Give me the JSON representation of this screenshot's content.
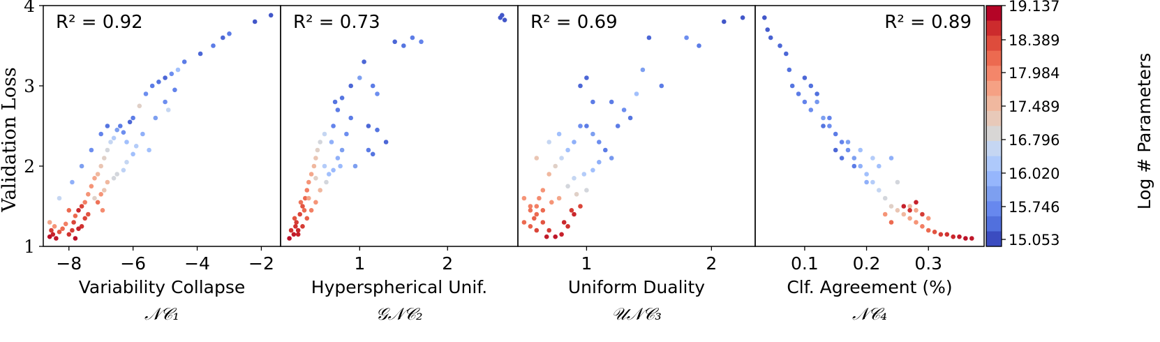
{
  "figure": {
    "ylabel": "Validation Loss",
    "colorbar": {
      "label": "Log # Parameters",
      "ticks": [
        "19.137",
        "18.389",
        "17.984",
        "17.489",
        "16.796",
        "16.020",
        "15.746",
        "15.053"
      ],
      "colors": [
        "#b40426",
        "#cc2b2d",
        "#de4c3c",
        "#ec6a50",
        "#f4866a",
        "#f5a184",
        "#f0b89f",
        "#e8c9b9",
        "#d8d6d5",
        "#c5d6f2",
        "#aec9fb",
        "#96b6fc",
        "#7d9ff0",
        "#6788ee",
        "#5170dd",
        "#3b4cc0"
      ]
    }
  },
  "chart_data": [
    {
      "type": "scatter",
      "annotation": "R² = 0.92",
      "xlabel": "Variability Collapse",
      "xsublabel": "𝒩𝒞₁",
      "ylabel": "Validation Loss",
      "xlim": [
        -8.8,
        -1.4
      ],
      "ylim": [
        1.0,
        4.0
      ],
      "xticks": [
        -8,
        -6,
        -4,
        -2
      ],
      "yticks": [
        1,
        2,
        3,
        4
      ],
      "points": [
        [
          -8.6,
          1.12,
          0.02
        ],
        [
          -8.5,
          1.15,
          0.05
        ],
        [
          -8.55,
          1.2,
          0.1
        ],
        [
          -8.4,
          1.1,
          0.03
        ],
        [
          -8.3,
          1.18,
          0.15
        ],
        [
          -8.2,
          1.22,
          0.2
        ],
        [
          -8.1,
          1.28,
          0.25
        ],
        [
          -8.6,
          1.3,
          0.35
        ],
        [
          -8.45,
          1.25,
          0.3
        ],
        [
          -8.0,
          1.15,
          0.08
        ],
        [
          -7.9,
          1.2,
          0.1
        ],
        [
          -7.85,
          1.3,
          0.12
        ],
        [
          -7.8,
          1.38,
          0.2
        ],
        [
          -7.7,
          1.45,
          0.06
        ],
        [
          -7.6,
          1.5,
          0.12
        ],
        [
          -7.5,
          1.55,
          0.25
        ],
        [
          -7.4,
          1.65,
          0.3
        ],
        [
          -7.3,
          1.75,
          0.3
        ],
        [
          -7.2,
          1.85,
          0.35
        ],
        [
          -7.1,
          1.9,
          0.4
        ],
        [
          -7.0,
          2.0,
          0.45
        ],
        [
          -6.9,
          2.1,
          0.5
        ],
        [
          -6.8,
          2.2,
          0.55
        ],
        [
          -6.7,
          2.3,
          0.6
        ],
        [
          -6.6,
          2.35,
          0.65
        ],
        [
          -6.5,
          2.45,
          0.8
        ],
        [
          -6.4,
          2.5,
          0.9
        ],
        [
          -6.3,
          2.42,
          0.85
        ],
        [
          -6.2,
          2.3,
          0.7
        ],
        [
          -6.1,
          2.55,
          0.95
        ],
        [
          -6.0,
          2.6,
          0.9
        ],
        [
          -5.8,
          2.75,
          0.5
        ],
        [
          -5.6,
          2.9,
          0.85
        ],
        [
          -5.4,
          3.0,
          0.9
        ],
        [
          -5.2,
          3.05,
          0.92
        ],
        [
          -5.0,
          3.1,
          0.95
        ],
        [
          -4.8,
          3.15,
          0.85
        ],
        [
          -4.6,
          3.2,
          0.7
        ],
        [
          -4.4,
          3.3,
          0.9
        ],
        [
          -3.9,
          3.4,
          0.95
        ],
        [
          -3.5,
          3.5,
          0.9
        ],
        [
          -3.2,
          3.6,
          0.95
        ],
        [
          -3.0,
          3.65,
          0.9
        ],
        [
          -2.2,
          3.8,
          0.98
        ],
        [
          -1.7,
          3.88,
          0.98
        ],
        [
          -7.0,
          1.65,
          0.3
        ],
        [
          -6.8,
          1.8,
          0.4
        ],
        [
          -6.5,
          1.9,
          0.55
        ],
        [
          -6.2,
          2.05,
          0.6
        ],
        [
          -5.9,
          2.25,
          0.65
        ],
        [
          -7.6,
          1.25,
          0.08
        ],
        [
          -7.5,
          1.35,
          0.12
        ],
        [
          -8.0,
          1.45,
          0.2
        ],
        [
          -8.3,
          1.6,
          0.6
        ],
        [
          -7.9,
          1.8,
          0.75
        ],
        [
          -7.6,
          2.0,
          0.8
        ],
        [
          -7.3,
          2.2,
          0.85
        ],
        [
          -7.0,
          2.4,
          0.88
        ],
        [
          -6.8,
          2.5,
          0.92
        ],
        [
          -7.2,
          1.6,
          0.5
        ],
        [
          -6.9,
          1.7,
          0.45
        ],
        [
          -6.6,
          1.85,
          0.55
        ],
        [
          -6.3,
          1.95,
          0.62
        ],
        [
          -6.0,
          2.15,
          0.7
        ],
        [
          -5.7,
          2.4,
          0.75
        ],
        [
          -5.3,
          2.6,
          0.8
        ],
        [
          -5.0,
          2.8,
          0.85
        ],
        [
          -4.7,
          2.95,
          0.88
        ],
        [
          -4.9,
          2.7,
          0.6
        ],
        [
          -5.5,
          2.2,
          0.7
        ],
        [
          -7.8,
          1.1,
          0.02
        ],
        [
          -7.7,
          1.22,
          0.05
        ],
        [
          -7.4,
          1.4,
          0.15
        ],
        [
          -7.1,
          1.55,
          0.22
        ],
        [
          -6.95,
          1.45,
          0.28
        ]
      ]
    },
    {
      "type": "scatter",
      "annotation": "R² = 0.73",
      "xlabel": "Hyperspherical Unif.",
      "xsublabel": "𝒢𝒩𝒞₂",
      "ylabel": "Validation Loss",
      "xlim": [
        0.1,
        2.8
      ],
      "ylim": [
        1.0,
        4.0
      ],
      "xticks": [
        1,
        2
      ],
      "yticks": [
        1,
        2,
        3,
        4
      ],
      "points": [
        [
          0.2,
          1.1,
          0.02
        ],
        [
          0.25,
          1.15,
          0.04
        ],
        [
          0.3,
          1.2,
          0.06
        ],
        [
          0.28,
          1.3,
          0.1
        ],
        [
          0.32,
          1.4,
          0.12
        ],
        [
          0.35,
          1.5,
          0.15
        ],
        [
          0.38,
          1.6,
          0.2
        ],
        [
          0.4,
          1.7,
          0.25
        ],
        [
          0.42,
          1.8,
          0.3
        ],
        [
          0.45,
          1.9,
          0.35
        ],
        [
          0.48,
          2.0,
          0.4
        ],
        [
          0.5,
          2.1,
          0.45
        ],
        [
          0.52,
          2.2,
          0.5
        ],
        [
          0.55,
          2.3,
          0.55
        ],
        [
          0.5,
          1.55,
          0.3
        ],
        [
          0.45,
          1.45,
          0.25
        ],
        [
          0.4,
          1.35,
          0.18
        ],
        [
          0.35,
          1.25,
          0.1
        ],
        [
          0.6,
          2.0,
          0.65
        ],
        [
          0.65,
          1.9,
          0.7
        ],
        [
          0.7,
          1.95,
          0.72
        ],
        [
          0.75,
          2.1,
          0.75
        ],
        [
          0.8,
          2.2,
          0.8
        ],
        [
          0.85,
          2.4,
          0.85
        ],
        [
          0.9,
          2.6,
          0.9
        ],
        [
          0.7,
          2.5,
          0.88
        ],
        [
          0.75,
          2.7,
          0.9
        ],
        [
          0.8,
          2.85,
          0.92
        ],
        [
          0.9,
          3.0,
          0.95
        ],
        [
          1.0,
          3.1,
          0.8
        ],
        [
          1.05,
          3.3,
          0.95
        ],
        [
          1.15,
          3.0,
          0.9
        ],
        [
          1.2,
          2.9,
          0.85
        ],
        [
          1.1,
          2.5,
          0.95
        ],
        [
          1.2,
          2.45,
          0.92
        ],
        [
          1.3,
          2.3,
          0.95
        ],
        [
          1.4,
          3.55,
          0.95
        ],
        [
          1.5,
          3.5,
          0.92
        ],
        [
          1.6,
          3.6,
          0.9
        ],
        [
          1.7,
          3.55,
          0.88
        ],
        [
          2.6,
          3.85,
          0.98
        ],
        [
          2.65,
          3.82,
          0.98
        ],
        [
          2.62,
          3.88,
          0.98
        ],
        [
          0.6,
          2.4,
          0.6
        ],
        [
          0.55,
          1.7,
          0.4
        ],
        [
          0.62,
          1.8,
          0.55
        ],
        [
          0.3,
          1.15,
          0.05
        ],
        [
          0.22,
          1.2,
          0.08
        ],
        [
          0.26,
          1.35,
          0.15
        ],
        [
          0.33,
          1.55,
          0.22
        ],
        [
          0.68,
          2.3,
          0.75
        ],
        [
          0.72,
          2.8,
          0.92
        ],
        [
          1.1,
          2.2,
          0.9
        ],
        [
          1.15,
          2.15,
          0.92
        ],
        [
          0.95,
          2.0,
          0.8
        ],
        [
          0.78,
          2.0,
          0.72
        ],
        [
          0.5,
          1.85,
          0.5
        ],
        [
          0.42,
          1.6,
          0.35
        ],
        [
          0.37,
          1.45,
          0.2
        ],
        [
          0.27,
          1.25,
          0.08
        ]
      ]
    },
    {
      "type": "scatter",
      "annotation": "R² = 0.69",
      "xlabel": "Uniform Duality",
      "xsublabel": "𝒰𝒩𝒞₃",
      "ylabel": "Validation Loss",
      "xlim": [
        0.45,
        2.35
      ],
      "ylim": [
        1.0,
        4.0
      ],
      "xticks": [
        1,
        2
      ],
      "yticks": [
        1,
        2,
        3,
        4
      ],
      "points": [
        [
          0.5,
          1.6,
          0.3
        ],
        [
          0.55,
          1.5,
          0.25
        ],
        [
          0.6,
          1.4,
          0.2
        ],
        [
          0.65,
          1.3,
          0.15
        ],
        [
          0.7,
          1.2,
          0.1
        ],
        [
          0.75,
          1.12,
          0.03
        ],
        [
          0.8,
          1.15,
          0.05
        ],
        [
          0.85,
          1.25,
          0.08
        ],
        [
          0.9,
          1.4,
          0.06
        ],
        [
          0.95,
          1.5,
          0.12
        ],
        [
          0.5,
          1.3,
          0.2
        ],
        [
          0.55,
          1.25,
          0.18
        ],
        [
          0.6,
          1.5,
          0.25
        ],
        [
          0.65,
          1.7,
          0.3
        ],
        [
          0.7,
          1.9,
          0.4
        ],
        [
          0.75,
          2.0,
          0.5
        ],
        [
          0.8,
          2.1,
          0.6
        ],
        [
          0.85,
          2.2,
          0.7
        ],
        [
          0.9,
          2.3,
          0.75
        ],
        [
          0.95,
          2.5,
          0.85
        ],
        [
          1.0,
          2.5,
          0.9
        ],
        [
          1.05,
          2.4,
          0.8
        ],
        [
          1.1,
          2.3,
          0.85
        ],
        [
          1.15,
          2.2,
          0.9
        ],
        [
          0.95,
          3.0,
          0.95
        ],
        [
          1.0,
          3.1,
          0.95
        ],
        [
          1.05,
          2.8,
          0.9
        ],
        [
          1.2,
          2.8,
          0.9
        ],
        [
          1.3,
          2.7,
          0.85
        ],
        [
          1.4,
          2.9,
          0.7
        ],
        [
          1.45,
          3.2,
          0.8
        ],
        [
          1.5,
          3.6,
          0.95
        ],
        [
          1.6,
          3.0,
          0.9
        ],
        [
          1.8,
          3.6,
          0.85
        ],
        [
          1.9,
          3.5,
          0.9
        ],
        [
          2.25,
          3.85,
          0.98
        ],
        [
          2.1,
          3.8,
          0.98
        ],
        [
          0.55,
          1.45,
          0.22
        ],
        [
          0.65,
          1.45,
          0.2
        ],
        [
          0.72,
          1.55,
          0.3
        ],
        [
          0.78,
          1.6,
          0.35
        ],
        [
          0.85,
          1.75,
          0.55
        ],
        [
          0.9,
          1.85,
          0.6
        ],
        [
          0.98,
          1.9,
          0.65
        ],
        [
          1.05,
          1.95,
          0.7
        ],
        [
          0.6,
          1.2,
          0.12
        ],
        [
          0.68,
          1.12,
          0.04
        ],
        [
          0.82,
          1.3,
          0.06
        ],
        [
          0.88,
          1.45,
          0.1
        ],
        [
          1.1,
          2.05,
          0.75
        ],
        [
          0.7,
          2.3,
          0.6
        ],
        [
          0.6,
          2.1,
          0.45
        ],
        [
          0.78,
          2.4,
          0.7
        ],
        [
          1.2,
          2.1,
          0.82
        ],
        [
          1.25,
          2.5,
          0.9
        ],
        [
          1.35,
          2.6,
          0.92
        ],
        [
          0.92,
          1.65,
          0.5
        ],
        [
          1.0,
          1.7,
          0.55
        ],
        [
          0.62,
          1.6,
          0.28
        ],
        [
          0.58,
          1.35,
          0.18
        ]
      ]
    },
    {
      "type": "scatter",
      "annotation": "R² = 0.89",
      "xlabel": "Clf. Agreement (%)",
      "xsublabel": "𝒩𝒞₄",
      "ylabel": "Validation Loss",
      "xlim": [
        0.02,
        0.39
      ],
      "ylim": [
        1.0,
        4.0
      ],
      "xticks": [
        0.1,
        0.2,
        0.3
      ],
      "yticks": [
        1,
        2,
        3,
        4
      ],
      "points": [
        [
          0.035,
          3.85,
          0.98
        ],
        [
          0.04,
          3.7,
          0.97
        ],
        [
          0.045,
          3.6,
          0.96
        ],
        [
          0.06,
          3.5,
          0.95
        ],
        [
          0.07,
          3.4,
          0.95
        ],
        [
          0.075,
          3.2,
          0.93
        ],
        [
          0.08,
          3.0,
          0.92
        ],
        [
          0.09,
          2.9,
          0.9
        ],
        [
          0.1,
          2.8,
          0.88
        ],
        [
          0.11,
          2.7,
          0.85
        ],
        [
          0.12,
          2.8,
          0.82
        ],
        [
          0.13,
          2.6,
          0.8
        ],
        [
          0.14,
          2.5,
          0.85
        ],
        [
          0.15,
          2.4,
          0.9
        ],
        [
          0.16,
          2.3,
          0.88
        ],
        [
          0.17,
          2.2,
          0.85
        ],
        [
          0.18,
          2.1,
          0.8
        ],
        [
          0.19,
          2.0,
          0.75
        ],
        [
          0.2,
          1.9,
          0.7
        ],
        [
          0.21,
          1.8,
          0.65
        ],
        [
          0.22,
          1.7,
          0.6
        ],
        [
          0.23,
          1.6,
          0.55
        ],
        [
          0.24,
          1.5,
          0.5
        ],
        [
          0.25,
          1.45,
          0.45
        ],
        [
          0.26,
          1.4,
          0.4
        ],
        [
          0.27,
          1.35,
          0.35
        ],
        [
          0.28,
          1.3,
          0.3
        ],
        [
          0.29,
          1.25,
          0.25
        ],
        [
          0.3,
          1.2,
          0.2
        ],
        [
          0.31,
          1.18,
          0.15
        ],
        [
          0.32,
          1.15,
          0.1
        ],
        [
          0.33,
          1.15,
          0.08
        ],
        [
          0.34,
          1.12,
          0.06
        ],
        [
          0.35,
          1.12,
          0.04
        ],
        [
          0.36,
          1.1,
          0.02
        ],
        [
          0.37,
          1.1,
          0.03
        ],
        [
          0.1,
          3.1,
          0.95
        ],
        [
          0.12,
          2.9,
          0.93
        ],
        [
          0.13,
          2.5,
          0.92
        ],
        [
          0.15,
          2.2,
          0.95
        ],
        [
          0.16,
          2.1,
          0.92
        ],
        [
          0.18,
          2.0,
          0.9
        ],
        [
          0.2,
          1.8,
          0.75
        ],
        [
          0.22,
          2.0,
          0.7
        ],
        [
          0.24,
          2.1,
          0.75
        ],
        [
          0.25,
          1.8,
          0.55
        ],
        [
          0.27,
          1.5,
          0.4
        ],
        [
          0.28,
          1.45,
          0.35
        ],
        [
          0.3,
          1.35,
          0.3
        ],
        [
          0.26,
          1.5,
          0.05
        ],
        [
          0.27,
          1.45,
          0.08
        ],
        [
          0.28,
          1.55,
          0.05
        ],
        [
          0.29,
          1.4,
          0.1
        ],
        [
          0.24,
          1.3,
          0.2
        ],
        [
          0.23,
          1.4,
          0.3
        ],
        [
          0.19,
          2.2,
          0.7
        ],
        [
          0.21,
          2.1,
          0.65
        ],
        [
          0.17,
          2.3,
          0.8
        ],
        [
          0.14,
          2.6,
          0.88
        ],
        [
          0.11,
          3.0,
          0.93
        ]
      ]
    }
  ]
}
